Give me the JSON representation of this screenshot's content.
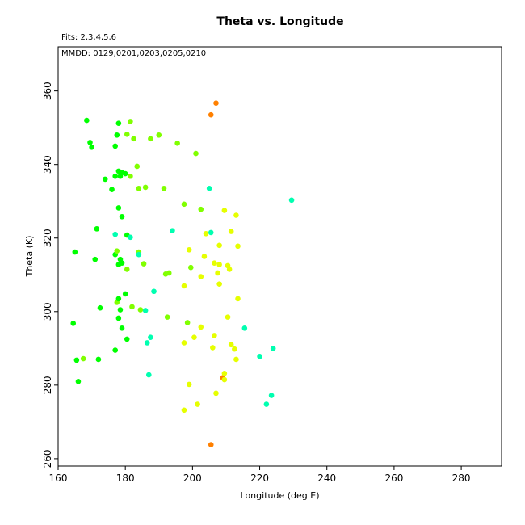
{
  "chart_data": {
    "type": "scatter",
    "title": "Theta vs. Longitude",
    "subtitle": "Fits: 2,3,4,5,6",
    "annotation": "MMDD: 0129,0201,0203,0205,0210",
    "xlabel": "Longitude (deg E)",
    "ylabel": "Theta (K)",
    "xlim": [
      160,
      292
    ],
    "ylim": [
      258,
      372
    ],
    "xticks": [
      160,
      180,
      200,
      220,
      240,
      260,
      280
    ],
    "yticks": [
      260,
      280,
      300,
      320,
      340,
      360
    ],
    "grid": false,
    "colors": {
      "green": "#00ff00",
      "yellowgreen": "#80ff00",
      "yellow": "#e6ff00",
      "cyan": "#00ffb0",
      "orange": "#ff8000"
    },
    "points": [
      {
        "x": 168.5,
        "y": 352.0,
        "c": "green"
      },
      {
        "x": 169.5,
        "y": 346.0,
        "c": "green"
      },
      {
        "x": 170.0,
        "y": 344.7,
        "c": "green"
      },
      {
        "x": 177.0,
        "y": 345.0,
        "c": "green"
      },
      {
        "x": 177.5,
        "y": 348.0,
        "c": "green"
      },
      {
        "x": 178.0,
        "y": 351.2,
        "c": "green"
      },
      {
        "x": 180.5,
        "y": 348.2,
        "c": "yellowgreen"
      },
      {
        "x": 181.5,
        "y": 351.7,
        "c": "yellowgreen"
      },
      {
        "x": 182.5,
        "y": 347.0,
        "c": "yellowgreen"
      },
      {
        "x": 187.5,
        "y": 347.0,
        "c": "yellowgreen"
      },
      {
        "x": 190.0,
        "y": 348.0,
        "c": "yellowgreen"
      },
      {
        "x": 195.5,
        "y": 345.8,
        "c": "yellowgreen"
      },
      {
        "x": 201.0,
        "y": 343.0,
        "c": "yellowgreen"
      },
      {
        "x": 205.5,
        "y": 353.5,
        "c": "orange"
      },
      {
        "x": 207.0,
        "y": 356.7,
        "c": "orange"
      },
      {
        "x": 174.0,
        "y": 336.0,
        "c": "green"
      },
      {
        "x": 176.0,
        "y": 333.2,
        "c": "green"
      },
      {
        "x": 177.0,
        "y": 336.8,
        "c": "green"
      },
      {
        "x": 178.0,
        "y": 338.2,
        "c": "green"
      },
      {
        "x": 178.5,
        "y": 336.8,
        "c": "green"
      },
      {
        "x": 179.0,
        "y": 337.8,
        "c": "green"
      },
      {
        "x": 180.0,
        "y": 337.5,
        "c": "green"
      },
      {
        "x": 181.5,
        "y": 336.8,
        "c": "yellowgreen"
      },
      {
        "x": 183.5,
        "y": 339.5,
        "c": "yellowgreen"
      },
      {
        "x": 184.0,
        "y": 333.5,
        "c": "yellowgreen"
      },
      {
        "x": 186.0,
        "y": 333.8,
        "c": "yellowgreen"
      },
      {
        "x": 191.5,
        "y": 333.5,
        "c": "yellowgreen"
      },
      {
        "x": 178.0,
        "y": 328.2,
        "c": "green"
      },
      {
        "x": 179.0,
        "y": 325.8,
        "c": "green"
      },
      {
        "x": 197.5,
        "y": 329.2,
        "c": "yellowgreen"
      },
      {
        "x": 202.5,
        "y": 327.8,
        "c": "yellowgreen"
      },
      {
        "x": 205.0,
        "y": 333.5,
        "c": "cyan"
      },
      {
        "x": 209.5,
        "y": 327.5,
        "c": "yellow"
      },
      {
        "x": 213.0,
        "y": 326.2,
        "c": "yellow"
      },
      {
        "x": 229.5,
        "y": 330.3,
        "c": "cyan"
      },
      {
        "x": 165.0,
        "y": 316.2,
        "c": "green"
      },
      {
        "x": 171.5,
        "y": 322.5,
        "c": "green"
      },
      {
        "x": 171.0,
        "y": 314.2,
        "c": "green"
      },
      {
        "x": 177.0,
        "y": 321.0,
        "c": "cyan"
      },
      {
        "x": 177.0,
        "y": 315.5,
        "c": "green"
      },
      {
        "x": 177.5,
        "y": 316.5,
        "c": "yellowgreen"
      },
      {
        "x": 178.0,
        "y": 312.8,
        "c": "green"
      },
      {
        "x": 178.5,
        "y": 314.2,
        "c": "green"
      },
      {
        "x": 179.0,
        "y": 313.2,
        "c": "green"
      },
      {
        "x": 180.5,
        "y": 320.8,
        "c": "green"
      },
      {
        "x": 181.5,
        "y": 320.2,
        "c": "cyan"
      },
      {
        "x": 180.5,
        "y": 311.5,
        "c": "yellowgreen"
      },
      {
        "x": 184.0,
        "y": 316.2,
        "c": "yellowgreen"
      },
      {
        "x": 184.0,
        "y": 315.5,
        "c": "cyan"
      },
      {
        "x": 185.5,
        "y": 313.0,
        "c": "yellowgreen"
      },
      {
        "x": 192.0,
        "y": 310.2,
        "c": "yellowgreen"
      },
      {
        "x": 193.0,
        "y": 310.5,
        "c": "yellowgreen"
      },
      {
        "x": 194.0,
        "y": 322.0,
        "c": "cyan"
      },
      {
        "x": 197.5,
        "y": 307.0,
        "c": "yellow"
      },
      {
        "x": 199.0,
        "y": 316.8,
        "c": "yellow"
      },
      {
        "x": 199.5,
        "y": 312.0,
        "c": "yellowgreen"
      },
      {
        "x": 202.5,
        "y": 309.5,
        "c": "yellow"
      },
      {
        "x": 203.5,
        "y": 315.0,
        "c": "yellow"
      },
      {
        "x": 204.0,
        "y": 321.2,
        "c": "yellow"
      },
      {
        "x": 205.5,
        "y": 321.5,
        "c": "cyan"
      },
      {
        "x": 206.5,
        "y": 313.2,
        "c": "yellow"
      },
      {
        "x": 207.5,
        "y": 310.5,
        "c": "yellow"
      },
      {
        "x": 208.0,
        "y": 312.8,
        "c": "yellow"
      },
      {
        "x": 208.0,
        "y": 318.0,
        "c": "yellow"
      },
      {
        "x": 208.0,
        "y": 307.5,
        "c": "yellow"
      },
      {
        "x": 210.5,
        "y": 312.5,
        "c": "yellow"
      },
      {
        "x": 211.0,
        "y": 311.5,
        "c": "yellow"
      },
      {
        "x": 211.5,
        "y": 321.8,
        "c": "yellow"
      },
      {
        "x": 213.5,
        "y": 317.8,
        "c": "yellow"
      },
      {
        "x": 213.5,
        "y": 303.5,
        "c": "yellow"
      },
      {
        "x": 164.5,
        "y": 296.8,
        "c": "green"
      },
      {
        "x": 165.5,
        "y": 286.8,
        "c": "green"
      },
      {
        "x": 166.0,
        "y": 281.0,
        "c": "green"
      },
      {
        "x": 167.5,
        "y": 287.2,
        "c": "yellowgreen"
      },
      {
        "x": 172.0,
        "y": 287.0,
        "c": "green"
      },
      {
        "x": 172.5,
        "y": 301.0,
        "c": "green"
      },
      {
        "x": 177.0,
        "y": 289.5,
        "c": "green"
      },
      {
        "x": 177.5,
        "y": 302.5,
        "c": "yellowgreen"
      },
      {
        "x": 178.0,
        "y": 303.5,
        "c": "green"
      },
      {
        "x": 178.0,
        "y": 298.2,
        "c": "green"
      },
      {
        "x": 178.5,
        "y": 300.5,
        "c": "green"
      },
      {
        "x": 179.0,
        "y": 295.5,
        "c": "green"
      },
      {
        "x": 180.0,
        "y": 304.8,
        "c": "green"
      },
      {
        "x": 180.5,
        "y": 292.5,
        "c": "green"
      },
      {
        "x": 182.0,
        "y": 301.3,
        "c": "yellowgreen"
      },
      {
        "x": 184.5,
        "y": 300.5,
        "c": "yellowgreen"
      },
      {
        "x": 186.0,
        "y": 300.3,
        "c": "cyan"
      },
      {
        "x": 186.5,
        "y": 291.5,
        "c": "cyan"
      },
      {
        "x": 187.5,
        "y": 293.0,
        "c": "cyan"
      },
      {
        "x": 188.5,
        "y": 305.5,
        "c": "cyan"
      },
      {
        "x": 187.0,
        "y": 282.8,
        "c": "cyan"
      },
      {
        "x": 192.5,
        "y": 298.5,
        "c": "yellowgreen"
      },
      {
        "x": 197.5,
        "y": 291.5,
        "c": "yellow"
      },
      {
        "x": 198.5,
        "y": 297.0,
        "c": "yellowgreen"
      },
      {
        "x": 199.0,
        "y": 280.2,
        "c": "yellow"
      },
      {
        "x": 200.5,
        "y": 293.0,
        "c": "yellow"
      },
      {
        "x": 202.5,
        "y": 295.8,
        "c": "yellow"
      },
      {
        "x": 206.0,
        "y": 290.2,
        "c": "yellow"
      },
      {
        "x": 206.5,
        "y": 293.5,
        "c": "yellow"
      },
      {
        "x": 209.0,
        "y": 282.0,
        "c": "orange"
      },
      {
        "x": 209.5,
        "y": 283.2,
        "c": "yellow"
      },
      {
        "x": 209.5,
        "y": 281.5,
        "c": "yellow"
      },
      {
        "x": 210.5,
        "y": 298.5,
        "c": "yellow"
      },
      {
        "x": 211.5,
        "y": 291.0,
        "c": "yellow"
      },
      {
        "x": 212.5,
        "y": 289.8,
        "c": "yellow"
      },
      {
        "x": 213.0,
        "y": 287.0,
        "c": "yellow"
      },
      {
        "x": 215.5,
        "y": 295.5,
        "c": "cyan"
      },
      {
        "x": 220.0,
        "y": 287.8,
        "c": "cyan"
      },
      {
        "x": 224.0,
        "y": 290.0,
        "c": "cyan"
      },
      {
        "x": 223.5,
        "y": 277.2,
        "c": "cyan"
      },
      {
        "x": 222.0,
        "y": 274.8,
        "c": "cyan"
      },
      {
        "x": 197.5,
        "y": 273.2,
        "c": "yellow"
      },
      {
        "x": 201.5,
        "y": 274.8,
        "c": "yellow"
      },
      {
        "x": 207.0,
        "y": 277.8,
        "c": "yellow"
      },
      {
        "x": 205.5,
        "y": 263.8,
        "c": "orange"
      }
    ]
  }
}
